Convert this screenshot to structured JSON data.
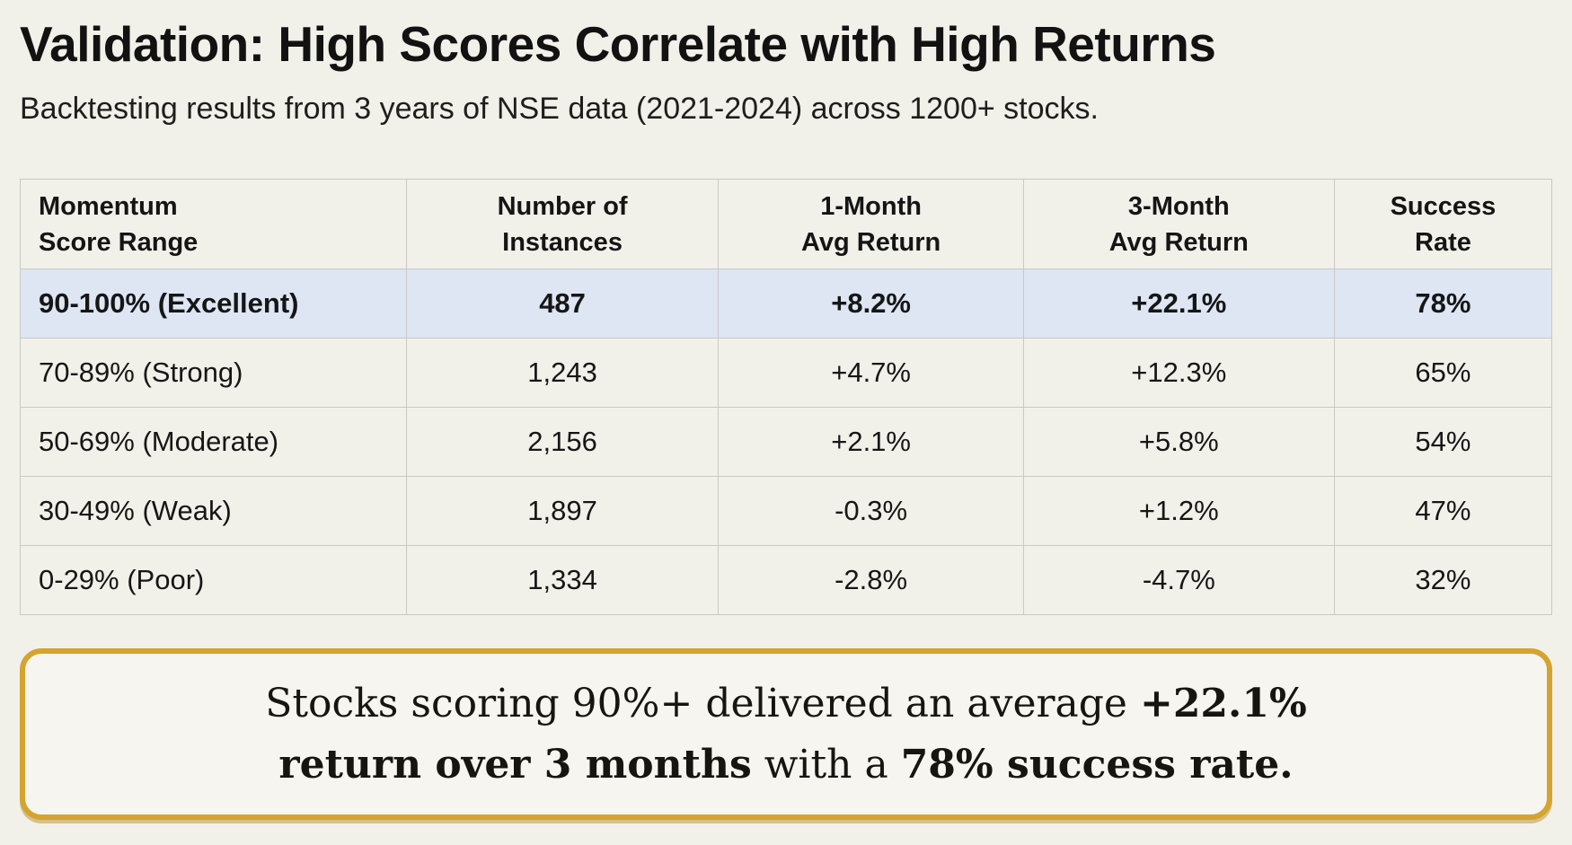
{
  "header": {
    "title": "Validation: High Scores Correlate with High Returns",
    "subtitle": "Backtesting results from 3 years of NSE data (2021-2024) across 1200+ stocks."
  },
  "table": {
    "headers": [
      "Momentum\nScore Range",
      "Number of\nInstances",
      "1-Month\nAvg Return",
      "3-Month\nAvg Return",
      "Success\nRate"
    ],
    "rows": [
      {
        "range": "90-100% (Excellent)",
        "instances": "487",
        "m1": "+8.2%",
        "m3": "+22.1%",
        "success": "78%"
      },
      {
        "range": "70-89% (Strong)",
        "instances": "1,243",
        "m1": "+4.7%",
        "m3": "+12.3%",
        "success": "65%"
      },
      {
        "range": "50-69% (Moderate)",
        "instances": "2,156",
        "m1": "+2.1%",
        "m3": "+5.8%",
        "success": "54%"
      },
      {
        "range": "30-49% (Weak)",
        "instances": "1,897",
        "m1": "-0.3%",
        "m3": "+1.2%",
        "success": "47%"
      },
      {
        "range": "0-29% (Poor)",
        "instances": "1,334",
        "m1": "-2.8%",
        "m3": "-4.7%",
        "success": "32%"
      }
    ]
  },
  "callout": {
    "line1": {
      "normal1": "Stocks scoring 90%+ delivered an average ",
      "bold1": "+22.1%"
    },
    "line2": {
      "bold1": "return over 3 months",
      "normal1": " with a ",
      "bold2": "78% success rate."
    }
  },
  "colors": {
    "background": "#f1f1ea",
    "text": "#161616",
    "positive": "#1f6b4c",
    "negative": "#a9483c",
    "highlight_row": "#dee6f4",
    "table_border": "#c9c9c3",
    "callout_border": "#d4a42e",
    "callout_background": "#f6f5ef"
  }
}
